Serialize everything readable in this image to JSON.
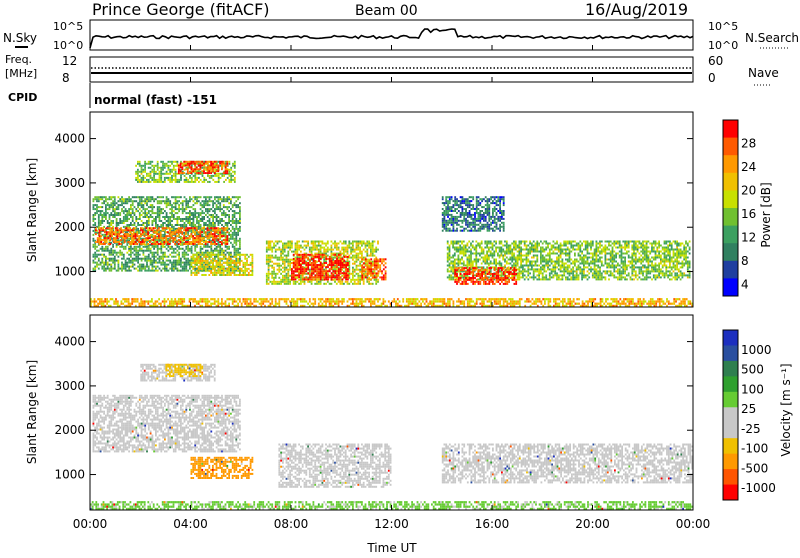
{
  "header": {
    "station": "Prince George (fitACF)",
    "beam": "Beam 00",
    "date": "16/Aug/2019"
  },
  "top_panel": {
    "left_label": "N.Sky",
    "right_label": "N.Search",
    "left_ticks": [
      "10^5",
      "10^0"
    ],
    "right_ticks": [
      "10^5",
      "10^0"
    ]
  },
  "freq_panel": {
    "left_label_1": "Freq.",
    "left_label_2": "[MHz]",
    "left_ticks": [
      "12",
      "8"
    ],
    "right_label": "Nave",
    "right_ticks": [
      "60",
      "0"
    ]
  },
  "cpid": {
    "label": "CPID",
    "value": "normal (fast) -151"
  },
  "colorbars": {
    "power": {
      "label": "Power [dB]",
      "ticks": [
        "28",
        "24",
        "20",
        "16",
        "12",
        "8",
        "4"
      ],
      "colors": [
        "#ff0000",
        "#ff5a00",
        "#ff9900",
        "#f0c000",
        "#c8e000",
        "#70c030",
        "#3ca060",
        "#308060",
        "#1f3fa0",
        "#0000ff"
      ]
    },
    "velocity": {
      "label": "Velocity [m s⁻¹]",
      "ticks": [
        "1000",
        "500",
        "100",
        "25",
        "-25",
        "-100",
        "-500",
        "-1000"
      ],
      "colors": [
        "#1c2fbf",
        "#2a4f9f",
        "#2f7f4f",
        "#2fa02f",
        "#66cc33",
        "#c8c8c8",
        "#c8c8c8",
        "#f0c000",
        "#ff9900",
        "#ff5500",
        "#ff0000"
      ]
    }
  },
  "chart_data": [
    {
      "type": "heatmap",
      "name": "power",
      "ylabel": "Slant Range [km]",
      "yticks": [
        "1000",
        "2000",
        "3000",
        "4000"
      ],
      "ylim": [
        200,
        4600
      ],
      "xlim_hours": [
        0,
        24
      ],
      "regions": [
        {
          "t": [
            0.1,
            6.0
          ],
          "r": [
            1000,
            2700
          ],
          "level": 0.35
        },
        {
          "t": [
            1.8,
            5.8
          ],
          "r": [
            3000,
            3500
          ],
          "level": 0.45
        },
        {
          "t": [
            3.5,
            5.5
          ],
          "r": [
            3200,
            3500
          ],
          "level": 0.9
        },
        {
          "t": [
            0.2,
            5.5
          ],
          "r": [
            1600,
            2000
          ],
          "level": 0.85
        },
        {
          "t": [
            4.0,
            6.5
          ],
          "r": [
            900,
            1400
          ],
          "level": 0.6
        },
        {
          "t": [
            7.0,
            11.5
          ],
          "r": [
            700,
            1700
          ],
          "level": 0.55
        },
        {
          "t": [
            8.0,
            10.3
          ],
          "r": [
            800,
            1400
          ],
          "level": 1.0
        },
        {
          "t": [
            10.8,
            11.8
          ],
          "r": [
            800,
            1300
          ],
          "level": 0.9
        },
        {
          "t": [
            14.2,
            23.9
          ],
          "r": [
            800,
            1700
          ],
          "level": 0.45
        },
        {
          "t": [
            14.5,
            17.0
          ],
          "r": [
            700,
            1100
          ],
          "level": 0.95
        },
        {
          "t": [
            14.0,
            16.5
          ],
          "r": [
            1900,
            2700
          ],
          "level": 0.2
        },
        {
          "t": [
            0.0,
            24.0
          ],
          "r": [
            200,
            400
          ],
          "level": 0.7
        }
      ]
    },
    {
      "type": "heatmap",
      "name": "velocity",
      "xlabel": "Time UT",
      "ylabel": "Slant Range [km]",
      "yticks": [
        "1000",
        "2000",
        "3000",
        "4000"
      ],
      "xticks": [
        "00:00",
        "04:00",
        "08:00",
        "12:00",
        "16:00",
        "20:00",
        "00:00"
      ],
      "ylim": [
        200,
        4600
      ],
      "xlim_hours": [
        0,
        24
      ],
      "regions": [
        {
          "t": [
            0.1,
            6.0
          ],
          "r": [
            1500,
            2800
          ],
          "v": 0
        },
        {
          "t": [
            2.0,
            5.0
          ],
          "r": [
            3100,
            3500
          ],
          "v": 0
        },
        {
          "t": [
            3.0,
            4.5
          ],
          "r": [
            3200,
            3500
          ],
          "v": -150
        },
        {
          "t": [
            4.0,
            6.5
          ],
          "r": [
            900,
            1400
          ],
          "v": -400
        },
        {
          "t": [
            7.5,
            12.0
          ],
          "r": [
            700,
            1700
          ],
          "v": 0
        },
        {
          "t": [
            14.0,
            24.0
          ],
          "r": [
            800,
            1700
          ],
          "v": 0
        },
        {
          "t": [
            0.0,
            24.0
          ],
          "r": [
            200,
            400
          ],
          "v": 80
        }
      ]
    }
  ]
}
